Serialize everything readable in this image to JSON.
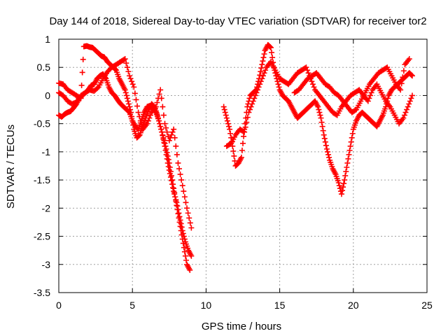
{
  "chart_data": {
    "type": "scatter",
    "title": "Day 144 of 2018, Sidereal Day-to-day VTEC variation (SDTVAR) for receiver tor2",
    "xlabel": "GPS time / hours",
    "ylabel": "SDTVAR / TECUs",
    "xlim": [
      0,
      25
    ],
    "ylim": [
      -3.5,
      1
    ],
    "x_ticks": [
      0,
      5,
      10,
      15,
      20,
      25
    ],
    "x_tick_labels": [
      "0",
      "5",
      "10",
      "15",
      "20",
      "25"
    ],
    "y_ticks": [
      1,
      0.5,
      0,
      -0.5,
      -1,
      -1.5,
      -2,
      -2.5,
      -3,
      -3.5
    ],
    "y_tick_labels": [
      "1",
      "0.5",
      "0",
      "-0.5",
      "-1",
      "-1.5",
      "-2",
      "-2.5",
      "-3",
      "-3.5"
    ],
    "grid": true,
    "marker": "+",
    "color": "#ff0000",
    "series": [
      {
        "x": [
          0.0,
          0.2,
          0.4,
          0.6,
          0.8,
          1.0,
          1.2,
          1.4,
          1.6,
          1.8,
          2.0,
          2.2,
          2.4,
          2.6,
          2.8,
          3.0,
          3.2,
          3.4,
          3.6,
          3.8,
          4.0,
          4.2,
          4.4,
          4.6,
          4.8,
          5.0,
          5.2,
          5.4,
          5.6,
          5.8,
          6.0,
          6.2,
          6.4,
          6.6,
          6.8,
          7.0,
          7.2,
          7.4,
          7.6,
          7.8,
          8.0,
          8.2,
          8.4,
          8.6,
          8.8,
          9.0
        ],
        "y": [
          -0.35,
          -0.38,
          -0.33,
          -0.3,
          -0.28,
          -0.22,
          -0.15,
          -0.05,
          0.0,
          0.05,
          0.1,
          0.18,
          0.2,
          0.3,
          0.35,
          0.38,
          0.3,
          0.15,
          0.05,
          0.0,
          -0.08,
          -0.15,
          -0.2,
          -0.25,
          -0.3,
          -0.45,
          -0.55,
          -0.6,
          -0.45,
          -0.3,
          -0.2,
          -0.18,
          -0.22,
          -0.3,
          -0.45,
          -0.65,
          -0.9,
          -1.2,
          -1.45,
          -1.7,
          -1.9,
          -2.15,
          -2.4,
          -2.6,
          -2.75,
          -2.85
        ]
      },
      {
        "x": [
          0.0,
          0.3,
          0.6,
          0.9,
          1.2,
          1.5,
          1.7,
          1.9,
          2.1,
          2.3,
          2.5,
          2.7,
          2.9,
          3.1,
          3.3,
          3.5,
          3.7,
          3.9,
          4.1,
          4.3,
          4.5,
          4.7,
          4.9,
          5.1,
          5.3,
          5.5,
          5.7,
          5.9,
          6.1,
          6.3,
          6.5,
          6.7,
          6.9,
          7.1,
          7.3,
          7.5,
          7.7,
          7.9,
          8.1,
          8.3,
          8.5,
          8.7,
          8.9
        ],
        "y": [
          0.22,
          0.2,
          0.1,
          0.05,
          0.0,
          -0.05,
          0.87,
          0.88,
          0.86,
          0.85,
          0.8,
          0.75,
          0.7,
          0.68,
          0.6,
          0.55,
          0.5,
          0.45,
          0.3,
          0.2,
          0.1,
          -0.1,
          -0.3,
          -0.6,
          -0.75,
          -0.7,
          -0.55,
          -0.4,
          -0.25,
          -0.15,
          -0.2,
          -0.35,
          -0.55,
          -0.75,
          -0.95,
          -1.2,
          -1.5,
          -1.8,
          -2.1,
          -2.4,
          -2.7,
          -3.0,
          -3.1
        ]
      },
      {
        "x": [
          0.0,
          0.3,
          0.6,
          0.9,
          1.2,
          1.5,
          1.8,
          2.1,
          2.4,
          2.7,
          3.0,
          3.3,
          3.6,
          3.9,
          4.2,
          4.5,
          4.8,
          5.1,
          5.4,
          5.7,
          6.0,
          6.3,
          6.6,
          6.9,
          7.2,
          7.5,
          7.8,
          8.1,
          8.4,
          8.7,
          9.0
        ],
        "y": [
          0.05,
          0.0,
          -0.1,
          -0.15,
          -0.12,
          0.0,
          0.05,
          0.1,
          0.08,
          0.15,
          0.3,
          0.42,
          0.5,
          0.55,
          0.6,
          0.65,
          0.35,
          0.15,
          -0.3,
          -0.6,
          -0.5,
          -0.3,
          -0.2,
          0.1,
          -0.5,
          -0.8,
          -0.6,
          -1.2,
          -1.6,
          -2.0,
          -2.35
        ]
      },
      {
        "x": [
          11.2,
          11.4,
          11.6,
          11.8,
          12.0,
          12.2,
          12.4,
          12.6,
          12.8,
          13.0,
          13.2,
          13.4,
          13.6,
          13.8,
          14.0,
          14.2,
          14.4,
          14.6,
          14.8,
          15.0,
          15.2,
          15.4,
          15.6,
          15.8,
          16.0,
          16.2,
          16.4,
          16.6,
          16.8,
          17.0,
          17.2,
          17.4,
          17.6,
          17.8,
          18.0,
          18.2,
          18.4,
          18.6,
          18.8,
          19.0,
          19.2,
          19.4,
          19.6,
          19.8,
          20.0,
          20.2,
          20.4,
          20.6,
          20.8,
          21.0,
          21.2,
          21.4,
          21.6,
          21.8,
          22.0,
          22.2,
          22.4,
          22.6,
          22.8,
          23.0,
          23.2,
          23.4,
          23.6,
          23.8,
          24.0
        ],
        "y": [
          -0.2,
          -0.4,
          -0.6,
          -0.9,
          -1.25,
          -1.2,
          -1.1,
          -0.6,
          -0.2,
          0.0,
          0.05,
          0.1,
          0.3,
          0.55,
          0.8,
          0.9,
          0.85,
          0.5,
          0.3,
          0.1,
          0.0,
          -0.05,
          -0.1,
          -0.2,
          -0.3,
          -0.4,
          -0.35,
          -0.3,
          -0.25,
          -0.2,
          -0.15,
          -0.1,
          -0.2,
          -0.4,
          -0.7,
          -0.95,
          -1.15,
          -1.3,
          -1.4,
          -1.55,
          -1.75,
          -1.5,
          -1.2,
          -0.9,
          -0.6,
          -0.45,
          -0.35,
          -0.3,
          -0.35,
          -0.4,
          -0.45,
          -0.5,
          -0.55,
          -0.45,
          -0.35,
          -0.2,
          0.0,
          0.1,
          0.15,
          0.2,
          0.25,
          0.3,
          0.35,
          0.4,
          0.35
        ]
      },
      {
        "x": [
          11.4,
          11.7,
          12.0,
          12.3,
          12.6,
          12.9,
          13.2,
          13.5,
          13.8,
          14.1,
          14.4,
          14.7,
          15.0,
          15.3,
          15.6,
          15.9,
          16.2,
          16.5,
          16.8,
          17.1,
          17.4,
          17.7,
          18.0,
          18.3,
          18.6,
          18.9,
          19.2,
          19.5,
          19.8,
          20.1,
          20.4,
          20.7,
          21.0,
          21.3,
          21.6,
          21.9,
          22.2,
          22.5,
          22.8,
          23.1,
          23.4,
          23.7,
          24.0
        ],
        "y": [
          -0.9,
          -0.85,
          -0.7,
          -0.6,
          -0.65,
          -0.3,
          -0.1,
          0.1,
          0.3,
          0.5,
          0.6,
          0.45,
          0.3,
          0.25,
          0.2,
          0.3,
          0.4,
          0.45,
          0.5,
          0.3,
          0.1,
          0.0,
          -0.1,
          -0.2,
          -0.3,
          -0.35,
          -0.2,
          -0.1,
          0.0,
          0.05,
          0.1,
          0.0,
          -0.1,
          0.1,
          0.2,
          0.05,
          -0.1,
          -0.2,
          -0.35,
          -0.5,
          -0.4,
          -0.2,
          0.0
        ]
      },
      {
        "x": [
          16.0,
          16.3,
          16.6,
          16.9,
          17.2,
          17.5,
          17.8,
          18.1,
          18.4,
          18.7,
          19.0,
          19.3,
          19.6,
          19.9,
          20.2,
          20.5,
          20.8,
          21.1,
          21.4,
          21.7,
          22.0,
          22.3,
          22.6,
          22.9,
          23.2,
          23.5,
          23.8
        ],
        "y": [
          0.05,
          0.1,
          0.2,
          0.3,
          0.35,
          0.4,
          0.3,
          0.2,
          0.15,
          0.05,
          0.0,
          -0.1,
          -0.2,
          -0.3,
          -0.25,
          -0.1,
          0.05,
          0.2,
          0.3,
          0.4,
          0.45,
          0.5,
          0.35,
          0.2,
          0.1,
          0.55,
          0.65
        ]
      }
    ]
  }
}
